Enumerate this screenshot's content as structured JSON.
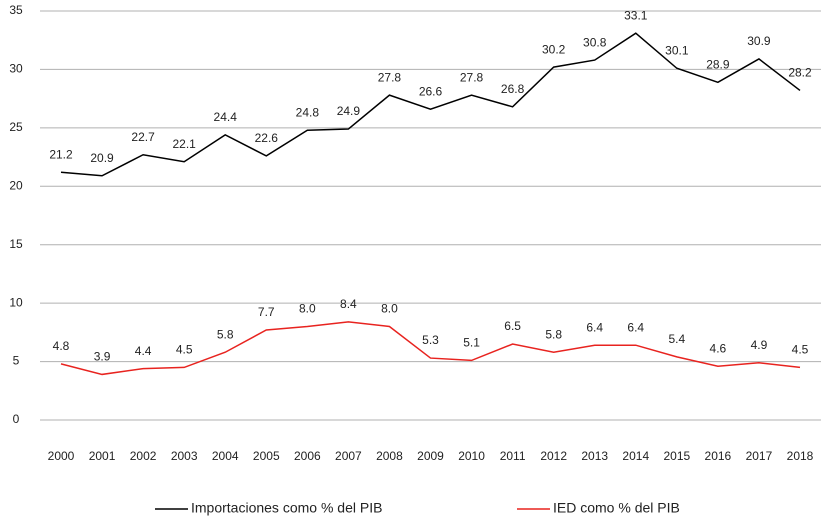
{
  "chart_data": {
    "type": "line",
    "categories": [
      "2000",
      "2001",
      "2002",
      "2003",
      "2004",
      "2005",
      "2006",
      "2007",
      "2008",
      "2009",
      "2010",
      "2011",
      "2012",
      "2013",
      "2014",
      "2015",
      "2016",
      "2017",
      "2018"
    ],
    "series": [
      {
        "name": "Importaciones como % del PIB",
        "color": "#000000",
        "values": [
          21.2,
          20.9,
          22.7,
          22.1,
          24.4,
          22.6,
          24.8,
          24.9,
          27.8,
          26.6,
          27.8,
          26.8,
          30.2,
          30.8,
          33.1,
          30.1,
          28.9,
          30.9,
          28.2
        ]
      },
      {
        "name": "IED como % del PIB",
        "color": "#e8231f",
        "values": [
          4.8,
          3.9,
          4.4,
          4.5,
          5.8,
          7.7,
          8,
          8.4,
          8,
          5.3,
          5.1,
          6.5,
          5.8,
          6.4,
          6.4,
          5.4,
          4.6,
          4.9,
          4.5
        ],
        "value_labels": [
          "4.8",
          "3.9",
          "4.4",
          "4.5",
          "5.8",
          "7.7",
          "8.0",
          "8.4",
          "8.0",
          "5.3",
          "5.1",
          "6.5",
          "5.8",
          "6.4",
          "6.4",
          "5.4",
          "4.6",
          "4.9",
          "4.5"
        ]
      }
    ],
    "ylim": [
      0,
      35
    ],
    "yticks": [
      0,
      5,
      10,
      15,
      20,
      25,
      30,
      35
    ],
    "grid": true,
    "legend": "bottom"
  }
}
